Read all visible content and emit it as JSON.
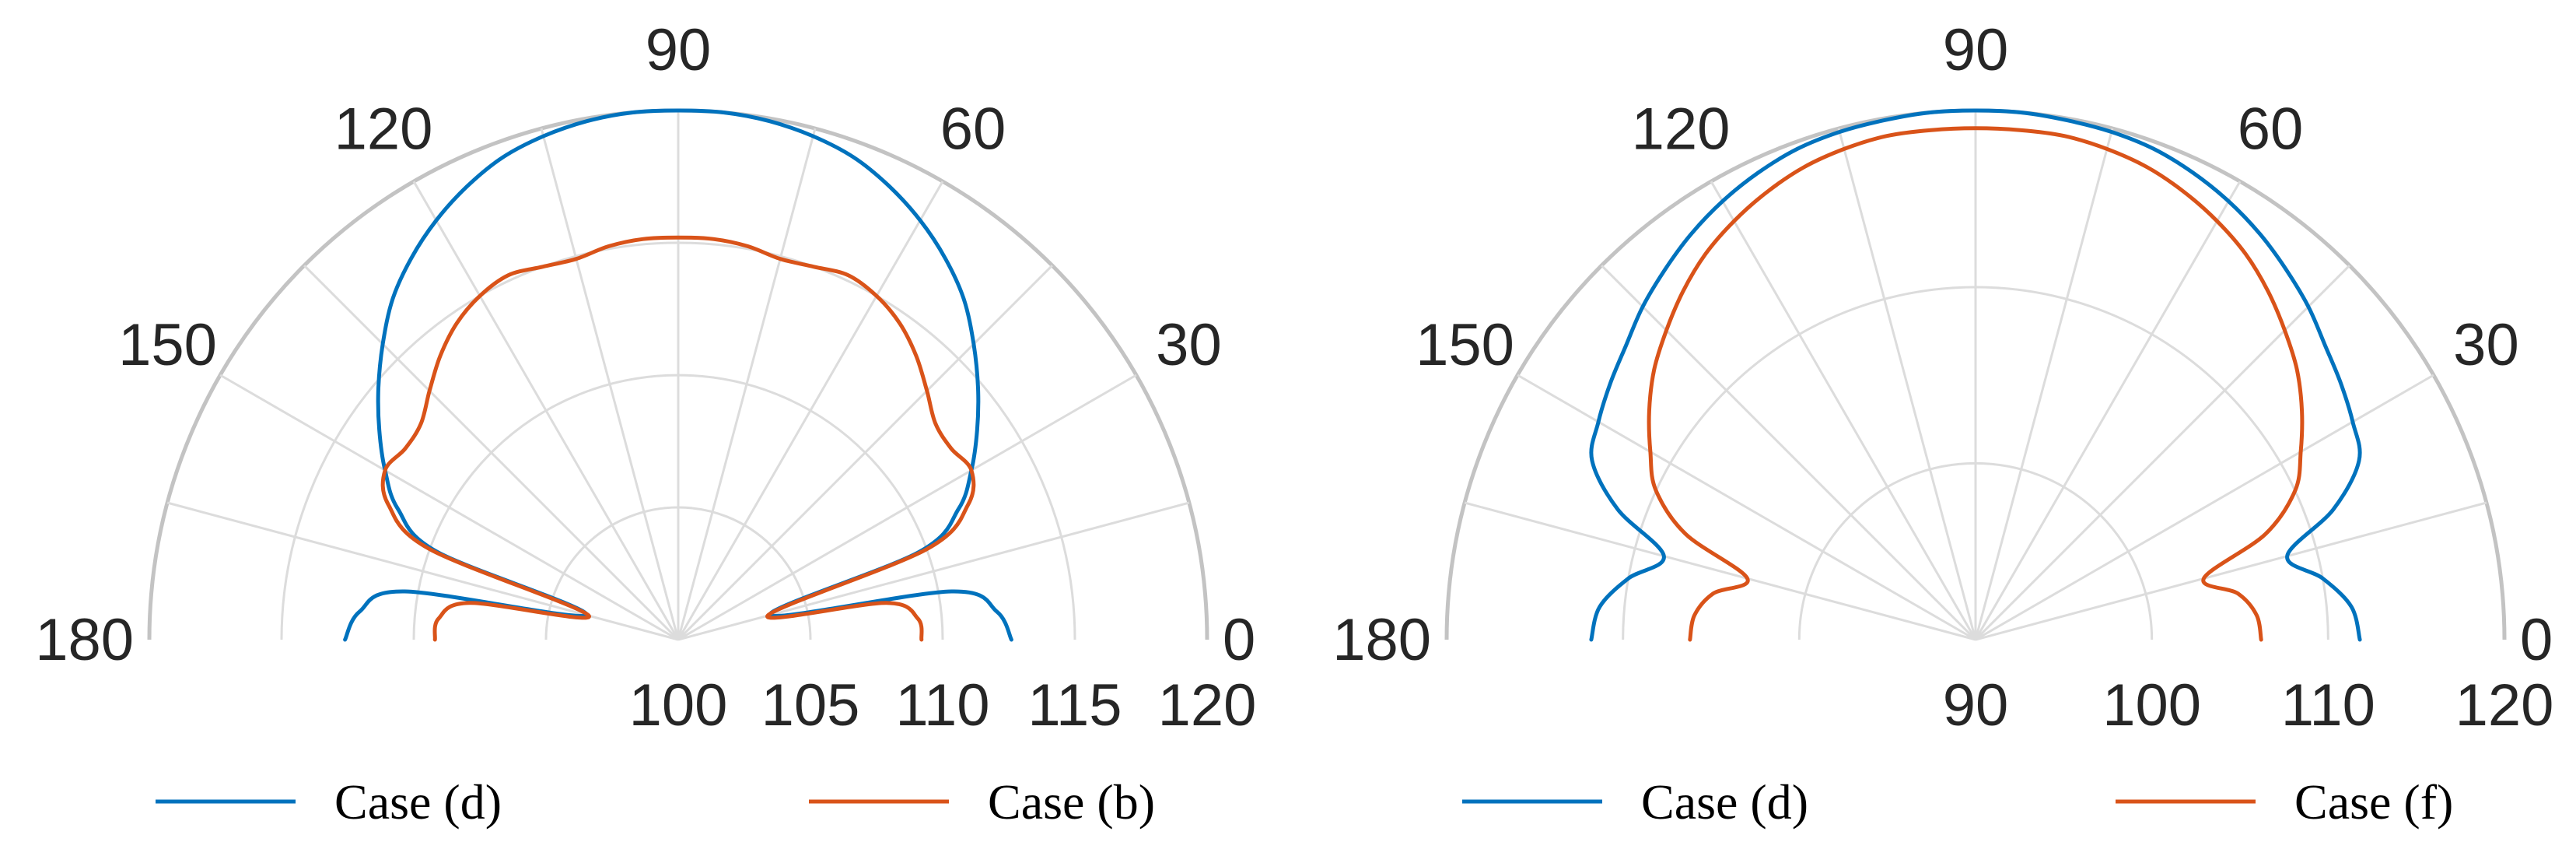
{
  "chart_data": [
    {
      "type": "polar-line",
      "title": "",
      "theta_range_deg": [
        0,
        180
      ],
      "r_range": [
        100,
        120
      ],
      "r_ticks": [
        "100",
        "105",
        "110",
        "115",
        "120"
      ],
      "theta_ticks": [
        "0",
        "30",
        "60",
        "90",
        "120",
        "150",
        "180"
      ],
      "grid": true,
      "legend_position": "bottom",
      "series": [
        {
          "name": "Case (d)",
          "color": "#0072BD",
          "theta": [
            0,
            5,
            10,
            15,
            20,
            25,
            30,
            35,
            40,
            45,
            50,
            55,
            60,
            65,
            70,
            75,
            80,
            85,
            90,
            95,
            100,
            105,
            110,
            115,
            120,
            125,
            130,
            135,
            140,
            145,
            150,
            155,
            160,
            165,
            170,
            175,
            180
          ],
          "r": [
            112.6,
            112.1,
            110.5,
            103.6,
            109.7,
            111.7,
            112.8,
            113.8,
            114.8,
            115.8,
            116.8,
            117.6,
            118.3,
            118.9,
            119.4,
            119.7,
            119.9,
            120.0,
            120.0,
            120.0,
            119.9,
            119.7,
            119.4,
            118.9,
            118.3,
            117.6,
            116.8,
            115.8,
            114.8,
            113.8,
            112.8,
            111.7,
            109.7,
            103.6,
            110.5,
            112.1,
            112.6
          ]
        },
        {
          "name": "Case (b)",
          "color": "#D95319",
          "theta": [
            0,
            5,
            10,
            15,
            20,
            25,
            30,
            35,
            40,
            45,
            50,
            55,
            60,
            65,
            70,
            75,
            80,
            85,
            90,
            95,
            100,
            105,
            110,
            115,
            120,
            125,
            130,
            135,
            140,
            145,
            150,
            155,
            160,
            165,
            170,
            175,
            180
          ],
          "r": [
            109.2,
            109.1,
            108.0,
            103.5,
            110.0,
            112.1,
            112.8,
            112.6,
            112.7,
            113.3,
            114.0,
            114.6,
            115.0,
            115.2,
            115.0,
            114.9,
            115.1,
            115.2,
            115.2,
            115.2,
            115.1,
            114.9,
            115.0,
            115.2,
            115.0,
            114.6,
            114.0,
            113.3,
            112.7,
            112.6,
            112.8,
            112.1,
            110.0,
            103.5,
            108.0,
            109.1,
            109.2
          ]
        }
      ]
    },
    {
      "type": "polar-line",
      "title": "",
      "theta_range_deg": [
        0,
        180
      ],
      "r_range": [
        90,
        120
      ],
      "r_ticks": [
        "90",
        "100",
        "110",
        "120"
      ],
      "theta_ticks": [
        "0",
        "30",
        "60",
        "90",
        "120",
        "150",
        "180"
      ],
      "grid": true,
      "legend_position": "bottom",
      "series": [
        {
          "name": "Case (d)",
          "color": "#0072BD",
          "theta": [
            0,
            5,
            10,
            15,
            20,
            25,
            30,
            35,
            40,
            45,
            50,
            55,
            60,
            65,
            70,
            75,
            80,
            85,
            90,
            95,
            100,
            105,
            110,
            115,
            120,
            125,
            130,
            135,
            140,
            145,
            150,
            155,
            160,
            165,
            170,
            175,
            180
          ],
          "r": [
            111.8,
            111.4,
            110.0,
            108.3,
            111.6,
            114.0,
            114.7,
            115.3,
            115.9,
            116.7,
            117.4,
            118.1,
            118.7,
            119.2,
            119.6,
            119.8,
            119.9,
            120.0,
            120.0,
            120.0,
            119.9,
            119.8,
            119.6,
            119.2,
            118.7,
            118.1,
            117.4,
            116.7,
            115.9,
            115.3,
            114.7,
            114.0,
            111.6,
            108.3,
            110.0,
            111.4,
            111.8
          ]
        },
        {
          "name": "Case (f)",
          "color": "#D95319",
          "theta": [
            0,
            5,
            10,
            15,
            20,
            25,
            30,
            35,
            40,
            45,
            50,
            55,
            60,
            65,
            70,
            75,
            80,
            85,
            90,
            95,
            100,
            105,
            110,
            115,
            120,
            125,
            130,
            135,
            140,
            145,
            150,
            155,
            160,
            165,
            170,
            175,
            180
          ],
          "r": [
            106.2,
            106.0,
            105.1,
            103.4,
            107.5,
            110.0,
            111.3,
            112.6,
            113.8,
            114.8,
            115.8,
            116.7,
            117.4,
            118.0,
            118.5,
            118.8,
            119.0,
            119.0,
            119.0,
            119.0,
            119.0,
            118.8,
            118.5,
            118.0,
            117.4,
            116.7,
            115.8,
            114.8,
            113.8,
            112.6,
            111.3,
            110.0,
            107.5,
            103.4,
            105.1,
            106.0,
            106.2
          ]
        }
      ]
    }
  ]
}
